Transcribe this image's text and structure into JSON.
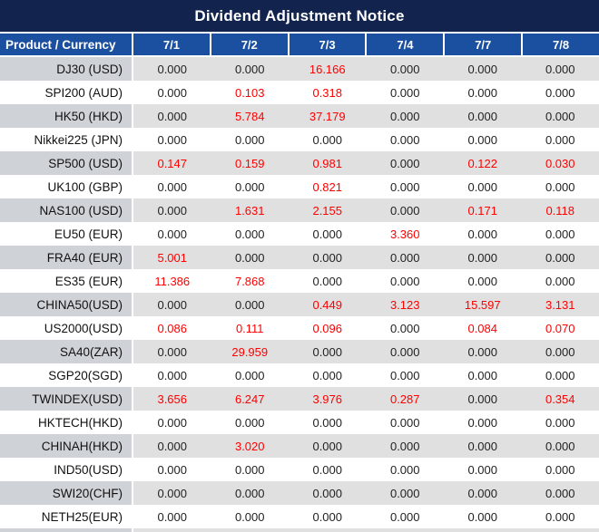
{
  "title": "Dividend Adjustment Notice",
  "colors": {
    "title_bg": "#12234e",
    "header_bg": "#1b50a0",
    "gray_row_label_bg": "#cfd3d8",
    "gray_row_data_bg": "#e0e0e0",
    "value_normal": "#222222",
    "value_highlight_red": "#ff0000",
    "header_text": "#ffffff"
  },
  "table": {
    "product_header": "Product / Currency",
    "date_headers": [
      "7/1",
      "7/2",
      "7/3",
      "7/4",
      "7/7",
      "7/8"
    ],
    "rows": [
      {
        "label": "DJ30 (USD)",
        "values": [
          "0.000",
          "0.000",
          "16.166",
          "0.000",
          "0.000",
          "0.000"
        ],
        "red": [
          false,
          false,
          true,
          false,
          false,
          false
        ]
      },
      {
        "label": "SPI200 (AUD)",
        "values": [
          "0.000",
          "0.103",
          "0.318",
          "0.000",
          "0.000",
          "0.000"
        ],
        "red": [
          false,
          true,
          true,
          false,
          false,
          false
        ]
      },
      {
        "label": "HK50 (HKD)",
        "values": [
          "0.000",
          "5.784",
          "37.179",
          "0.000",
          "0.000",
          "0.000"
        ],
        "red": [
          false,
          true,
          true,
          false,
          false,
          false
        ]
      },
      {
        "label": "Nikkei225 (JPN)",
        "values": [
          "0.000",
          "0.000",
          "0.000",
          "0.000",
          "0.000",
          "0.000"
        ],
        "red": [
          false,
          false,
          false,
          false,
          false,
          false
        ]
      },
      {
        "label": "SP500 (USD)",
        "values": [
          "0.147",
          "0.159",
          "0.981",
          "0.000",
          "0.122",
          "0.030"
        ],
        "red": [
          true,
          true,
          true,
          false,
          true,
          true
        ]
      },
      {
        "label": "UK100 (GBP)",
        "values": [
          "0.000",
          "0.000",
          "0.821",
          "0.000",
          "0.000",
          "0.000"
        ],
        "red": [
          false,
          false,
          true,
          false,
          false,
          false
        ]
      },
      {
        "label": "NAS100 (USD)",
        "values": [
          "0.000",
          "1.631",
          "2.155",
          "0.000",
          "0.171",
          "0.118"
        ],
        "red": [
          false,
          true,
          true,
          false,
          true,
          true
        ]
      },
      {
        "label": "EU50 (EUR)",
        "values": [
          "0.000",
          "0.000",
          "0.000",
          "3.360",
          "0.000",
          "0.000"
        ],
        "red": [
          false,
          false,
          false,
          true,
          false,
          false
        ]
      },
      {
        "label": "FRA40 (EUR)",
        "values": [
          "5.001",
          "0.000",
          "0.000",
          "0.000",
          "0.000",
          "0.000"
        ],
        "red": [
          true,
          false,
          false,
          false,
          false,
          false
        ]
      },
      {
        "label": "ES35 (EUR)",
        "values": [
          "11.386",
          "7.868",
          "0.000",
          "0.000",
          "0.000",
          "0.000"
        ],
        "red": [
          true,
          true,
          false,
          false,
          false,
          false
        ]
      },
      {
        "label": "CHINA50(USD)",
        "values": [
          "0.000",
          "0.000",
          "0.449",
          "3.123",
          "15.597",
          "3.131"
        ],
        "red": [
          false,
          false,
          true,
          true,
          true,
          true
        ]
      },
      {
        "label": "US2000(USD)",
        "values": [
          "0.086",
          "0.111",
          "0.096",
          "0.000",
          "0.084",
          "0.070"
        ],
        "red": [
          true,
          true,
          true,
          false,
          true,
          true
        ]
      },
      {
        "label": "SA40(ZAR)",
        "values": [
          "0.000",
          "29.959",
          "0.000",
          "0.000",
          "0.000",
          "0.000"
        ],
        "red": [
          false,
          true,
          false,
          false,
          false,
          false
        ]
      },
      {
        "label": "SGP20(SGD)",
        "values": [
          "0.000",
          "0.000",
          "0.000",
          "0.000",
          "0.000",
          "0.000"
        ],
        "red": [
          false,
          false,
          false,
          false,
          false,
          false
        ]
      },
      {
        "label": "TWINDEX(USD)",
        "values": [
          "3.656",
          "6.247",
          "3.976",
          "0.287",
          "0.000",
          "0.354"
        ],
        "red": [
          true,
          true,
          true,
          true,
          false,
          true
        ]
      },
      {
        "label": "HKTECH(HKD)",
        "values": [
          "0.000",
          "0.000",
          "0.000",
          "0.000",
          "0.000",
          "0.000"
        ],
        "red": [
          false,
          false,
          false,
          false,
          false,
          false
        ]
      },
      {
        "label": "CHINAH(HKD)",
        "values": [
          "0.000",
          "3.020",
          "0.000",
          "0.000",
          "0.000",
          "0.000"
        ],
        "red": [
          false,
          true,
          false,
          false,
          false,
          false
        ]
      },
      {
        "label": "IND50(USD)",
        "values": [
          "0.000",
          "0.000",
          "0.000",
          "0.000",
          "0.000",
          "0.000"
        ],
        "red": [
          false,
          false,
          false,
          false,
          false,
          false
        ]
      },
      {
        "label": "SWI20(CHF)",
        "values": [
          "0.000",
          "0.000",
          "0.000",
          "0.000",
          "0.000",
          "0.000"
        ],
        "red": [
          false,
          false,
          false,
          false,
          false,
          false
        ]
      },
      {
        "label": "NETH25(EUR)",
        "values": [
          "0.000",
          "0.000",
          "0.000",
          "0.000",
          "0.000",
          "0.000"
        ],
        "red": [
          false,
          false,
          false,
          false,
          false,
          false
        ]
      }
    ]
  }
}
